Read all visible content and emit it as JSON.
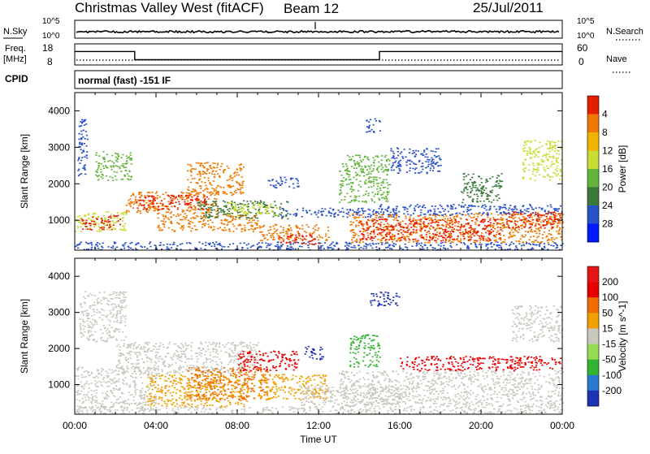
{
  "header": {
    "title": "Christmas Valley West (fitACF)",
    "beam": "Beam 12",
    "date": "25/Jul/2011"
  },
  "params": {
    "nsky_label": "N.Sky",
    "nsearch_label": "N.Search",
    "freq_label_1": "Freq.",
    "freq_label_2": "[MHz]",
    "nave_label": "Nave",
    "cpid_label": "CPID",
    "cpid_text": "normal (fast) -151 IF",
    "noise_ticks_left": [
      "10^5",
      "10^0"
    ],
    "noise_ticks_right": [
      "10^5",
      "10^0"
    ],
    "freq_ticks": [
      "18",
      "8"
    ],
    "nave_ticks": [
      "60",
      "0"
    ],
    "freq_profile": [
      {
        "t": 0,
        "mhz": 14.4
      },
      {
        "t": 2.95,
        "mhz": 14.4
      },
      {
        "t": 2.95,
        "mhz": 10.5
      },
      {
        "t": 15.0,
        "mhz": 10.5
      },
      {
        "t": 15.0,
        "mhz": 14.4
      },
      {
        "t": 24,
        "mhz": 14.4
      }
    ]
  },
  "chart_data": [
    {
      "type": "heatmap",
      "title": "Power",
      "ylabel": "Slant Range [km]",
      "xlabel": "Time UT",
      "xlim": [
        0,
        24
      ],
      "ylim": [
        180,
        4500
      ],
      "yticks": [
        1000,
        2000,
        3000,
        4000
      ],
      "xticks": [
        "00:00",
        "04:00",
        "08:00",
        "12:00",
        "16:00",
        "20:00",
        "00:00"
      ],
      "colorbar": {
        "label": "Power [dB]",
        "ticks": [
          "4",
          "8",
          "12",
          "16",
          "20",
          "24",
          "28"
        ],
        "colors": [
          "#0019ff",
          "#2850c8",
          "#3c7a3c",
          "#64b43c",
          "#c8dc32",
          "#f0b400",
          "#f07800",
          "#e61e00"
        ]
      },
      "regions": [
        {
          "t0": 0.0,
          "t1": 24.0,
          "r0": 200,
          "r1": 420,
          "color": "#2850c8"
        },
        {
          "t0": 0.0,
          "t1": 2.5,
          "r0": 700,
          "r1": 1250,
          "color": "#c8dc32"
        },
        {
          "t0": 0.3,
          "t1": 2.2,
          "r0": 750,
          "r1": 1150,
          "color": "#e61e00"
        },
        {
          "t0": 2.5,
          "t1": 7.0,
          "r0": 1200,
          "r1": 1800,
          "color": "#f07800"
        },
        {
          "t0": 3.0,
          "t1": 6.5,
          "r0": 1300,
          "r1": 1700,
          "color": "#e61e00"
        },
        {
          "t0": 5.5,
          "t1": 8.3,
          "r0": 1700,
          "r1": 2600,
          "color": "#f07800"
        },
        {
          "t0": 4.0,
          "t1": 9.0,
          "r0": 700,
          "r1": 1200,
          "color": "#f07800"
        },
        {
          "t0": 6.0,
          "t1": 10.5,
          "r0": 1050,
          "r1": 1550,
          "color": "#3c7a3c"
        },
        {
          "t0": 7.5,
          "t1": 10.0,
          "r0": 1150,
          "r1": 1500,
          "color": "#c8dc32"
        },
        {
          "t0": 9.0,
          "t1": 12.5,
          "r0": 450,
          "r1": 900,
          "color": "#f07800"
        },
        {
          "t0": 10.0,
          "t1": 12.0,
          "r0": 350,
          "r1": 650,
          "color": "#e61e00"
        },
        {
          "t0": 10.0,
          "t1": 16.0,
          "r0": 1100,
          "r1": 1350,
          "color": "#2850c8"
        },
        {
          "t0": 13.5,
          "t1": 24.0,
          "r0": 400,
          "r1": 1200,
          "color": "#f07800"
        },
        {
          "t0": 14.0,
          "t1": 21.0,
          "r0": 450,
          "r1": 1050,
          "color": "#e61e00"
        },
        {
          "t0": 21.0,
          "t1": 24.0,
          "r0": 800,
          "r1": 1250,
          "color": "#e61e00"
        },
        {
          "t0": 15.0,
          "t1": 24.0,
          "r0": 1150,
          "r1": 1450,
          "color": "#2850c8"
        },
        {
          "t0": 13.0,
          "t1": 15.5,
          "r0": 1500,
          "r1": 2800,
          "color": "#64b43c"
        },
        {
          "t0": 9.5,
          "t1": 11.0,
          "r0": 1900,
          "r1": 2200,
          "color": "#2850c8"
        },
        {
          "t0": 1.0,
          "t1": 2.8,
          "r0": 2100,
          "r1": 2900,
          "color": "#64b43c"
        },
        {
          "t0": 0.1,
          "t1": 0.6,
          "r0": 2200,
          "r1": 3800,
          "color": "#2850c8"
        },
        {
          "t0": 22.0,
          "t1": 24.0,
          "r0": 2100,
          "r1": 3200,
          "color": "#c8dc32"
        },
        {
          "t0": 15.5,
          "t1": 18.0,
          "r0": 2300,
          "r1": 3000,
          "color": "#2850c8"
        },
        {
          "t0": 19.0,
          "t1": 21.0,
          "r0": 1500,
          "r1": 2300,
          "color": "#3c7a3c"
        },
        {
          "t0": 14.3,
          "t1": 15.0,
          "r0": 3400,
          "r1": 3800,
          "color": "#2850c8"
        }
      ]
    },
    {
      "type": "heatmap",
      "title": "Velocity",
      "ylabel": "Slant Range [km]",
      "xlabel": "Time UT",
      "xlim": [
        0,
        24
      ],
      "ylim": [
        180,
        4500
      ],
      "yticks": [
        1000,
        2000,
        3000,
        4000
      ],
      "xticks": [
        "00:00",
        "04:00",
        "08:00",
        "12:00",
        "16:00",
        "20:00",
        "00:00"
      ],
      "colorbar": {
        "label": "Velocity [m s^-1]",
        "ticks": [
          "200",
          "100",
          "50",
          "15",
          "-15",
          "-50",
          "-100",
          "-200"
        ],
        "colors": [
          "#1e32b4",
          "#2878d2",
          "#32b432",
          "#96dc50",
          "#c8c8be",
          "#f0a000",
          "#f06e00",
          "#e60000",
          "#e61414"
        ]
      },
      "regions": [
        {
          "t0": 0.0,
          "t1": 24.0,
          "r0": 200,
          "r1": 400,
          "color": "#c8c8be"
        },
        {
          "t0": 0.0,
          "t1": 4.0,
          "r0": 300,
          "r1": 1500,
          "color": "#c8c8be"
        },
        {
          "t0": 2.0,
          "t1": 9.0,
          "r0": 1300,
          "r1": 2200,
          "color": "#c8c8be"
        },
        {
          "t0": 3.5,
          "t1": 8.5,
          "r0": 400,
          "r1": 1300,
          "color": "#f0a000"
        },
        {
          "t0": 5.5,
          "t1": 9.5,
          "r0": 600,
          "r1": 1500,
          "color": "#f06e00"
        },
        {
          "t0": 8.0,
          "t1": 11.0,
          "r0": 1400,
          "r1": 1950,
          "color": "#e60000"
        },
        {
          "t0": 9.0,
          "t1": 12.5,
          "r0": 600,
          "r1": 1300,
          "color": "#f0a000"
        },
        {
          "t0": 11.0,
          "t1": 16.0,
          "r0": 400,
          "r1": 1000,
          "color": "#c8c8be"
        },
        {
          "t0": 13.0,
          "t1": 24.0,
          "r0": 400,
          "r1": 1400,
          "color": "#c8c8be"
        },
        {
          "t0": 11.3,
          "t1": 12.2,
          "r0": 1700,
          "r1": 2100,
          "color": "#1e32b4"
        },
        {
          "t0": 13.5,
          "t1": 15.0,
          "r0": 1500,
          "r1": 2400,
          "color": "#32b432"
        },
        {
          "t0": 0.2,
          "t1": 2.5,
          "r0": 2200,
          "r1": 3600,
          "color": "#c8c8be"
        },
        {
          "t0": 21.5,
          "t1": 24.0,
          "r0": 2200,
          "r1": 3200,
          "color": "#c8c8be"
        },
        {
          "t0": 14.5,
          "t1": 16.0,
          "r0": 3200,
          "r1": 3600,
          "color": "#1e32b4"
        },
        {
          "t0": 16.0,
          "t1": 24.0,
          "r0": 1400,
          "r1": 1800,
          "color": "#e60000"
        }
      ]
    }
  ],
  "colors": {
    "frame": "#000000",
    "background": "#ffffff"
  }
}
